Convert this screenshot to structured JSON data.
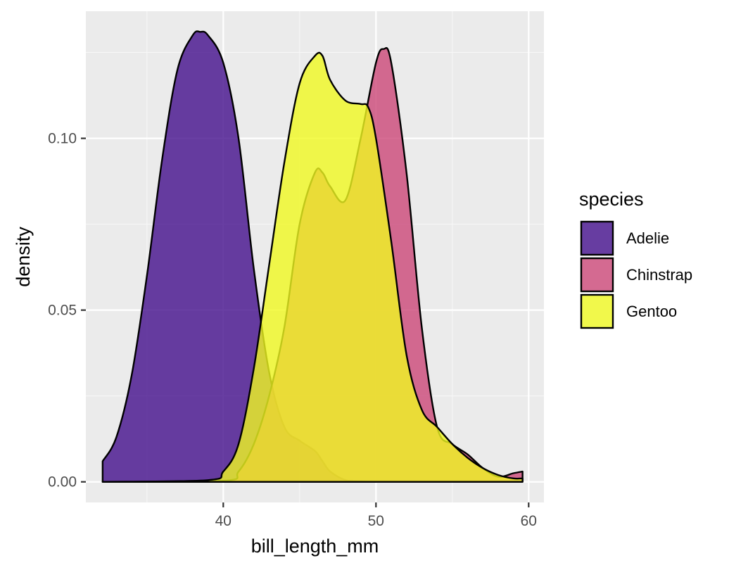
{
  "chart_data": {
    "type": "area",
    "subtype": "density",
    "xlabel": "bill_length_mm",
    "ylabel": "density",
    "xlim": [
      31,
      61
    ],
    "ylim": [
      -0.006,
      0.137
    ],
    "x_ticks": [
      40,
      50,
      60
    ],
    "x_tick_labels": [
      "40",
      "50",
      "60"
    ],
    "y_ticks": [
      0,
      0.05,
      0.1
    ],
    "y_tick_labels": [
      "0.00",
      "0.05",
      "0.10"
    ],
    "grid": true,
    "legend": {
      "title": "species",
      "position": "right"
    },
    "series": [
      {
        "name": "Adelie",
        "color": "#440f8c",
        "x": [
          32.1,
          33,
          34,
          35,
          36,
          37,
          38,
          38.5,
          39,
          40,
          41,
          42,
          43,
          44,
          45,
          46,
          46.5,
          47,
          48,
          49,
          50
        ],
        "y": [
          0.006,
          0.013,
          0.031,
          0.06,
          0.094,
          0.12,
          0.13,
          0.131,
          0.13,
          0.122,
          0.1,
          0.062,
          0.032,
          0.016,
          0.012,
          0.009,
          0.006,
          0.003,
          0.0005,
          0.0001,
          0
        ]
      },
      {
        "name": "Chinstrap",
        "color": "#cc4778",
        "x": [
          32.1,
          40,
          41,
          42,
          43,
          44,
          45,
          46,
          46.5,
          47,
          48,
          49,
          50,
          50.5,
          51,
          52,
          53,
          54,
          55,
          56,
          57,
          58,
          59,
          59.6
        ],
        "y": [
          0,
          0.0003,
          0.003,
          0.011,
          0.025,
          0.045,
          0.075,
          0.09,
          0.09,
          0.086,
          0.082,
          0.1,
          0.122,
          0.126,
          0.122,
          0.09,
          0.045,
          0.016,
          0.011,
          0.008,
          0.004,
          0.0015,
          0.0025,
          0.003
        ]
      },
      {
        "name": "Gentoo",
        "color": "#f0f921",
        "x": [
          32.1,
          39,
          40,
          41,
          42,
          43,
          44,
          45,
          46,
          46.5,
          47,
          48,
          49,
          49.5,
          50,
          51,
          52,
          53,
          54,
          55,
          56,
          57,
          58,
          59,
          59.6
        ],
        "y": [
          0,
          0.0005,
          0.003,
          0.011,
          0.033,
          0.063,
          0.093,
          0.116,
          0.124,
          0.124,
          0.117,
          0.111,
          0.11,
          0.109,
          0.1,
          0.07,
          0.037,
          0.021,
          0.016,
          0.011,
          0.007,
          0.004,
          0.002,
          0.001,
          0.001
        ]
      }
    ]
  }
}
